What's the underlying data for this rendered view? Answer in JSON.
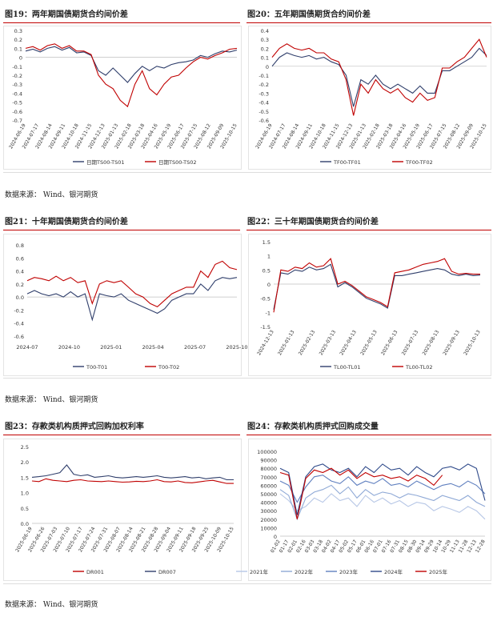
{
  "titles": {
    "fig19": "图19：两年期国债期货合约间价差",
    "fig20": "图20：五年期国债期货合约间价差",
    "fig21": "图21：十年期国债期货合约间价差",
    "fig22": "图22：三十年期国债期货合约间价差",
    "fig23": "图23：存款类机构质押式回购加权利率",
    "fig24": "图24：存款类机构质押式回购成交量"
  },
  "sources": {
    "row1": "数据来源：  Wind、银河期货",
    "row2": "数据来源：  Wind、银河期货",
    "row3": "数据来源：  Wind、银河期货"
  },
  "colors": {
    "navy": "#2f3e6b",
    "red": "#c00000",
    "y2021": "#b7c7e6",
    "y2022": "#8fa9d6",
    "y2023": "#5f7fbf",
    "y2024": "#2f4a8a",
    "y2025": "#c00000"
  },
  "chart_data": [
    {
      "id": "fig19",
      "type": "line",
      "ylim": [
        -0.7,
        0.3
      ],
      "yticks": [
        0.3,
        0.2,
        0.1,
        0,
        -0.1,
        -0.2,
        -0.3,
        -0.4,
        -0.5,
        -0.6,
        -0.7
      ],
      "ytick_labels": [
        "0.3",
        "0.2",
        "0.1",
        "0",
        "-0.1",
        "-0.2",
        "-0.3",
        "-0.4",
        "-0.5",
        "-0.6",
        "-0.7"
      ],
      "xtick_labels": [
        "2024-06-19",
        "2024-07-17",
        "2024-08-14",
        "2024-09-11",
        "2024-10-18",
        "2024-11-15",
        "2024-12-13",
        "2025-01-13",
        "2025-02-18",
        "2025-03-18",
        "2025-04-16",
        "2025-05-19",
        "2025-06-17",
        "2025-07-15",
        "2025-08-12",
        "2025-09-09",
        "2025-10-15"
      ],
      "series": [
        {
          "name": "日期TS00-TS01",
          "color": "#2f3e6b",
          "values": [
            0.07,
            0.09,
            0.06,
            0.1,
            0.12,
            0.08,
            0.11,
            0.05,
            0.06,
            0.02,
            -0.15,
            -0.2,
            -0.12,
            -0.2,
            -0.28,
            -0.18,
            -0.1,
            -0.15,
            -0.1,
            -0.12,
            -0.08,
            -0.06,
            -0.05,
            -0.03,
            0.02,
            0.0,
            0.04,
            0.07,
            0.06,
            0.08
          ]
        },
        {
          "name": "日期TS00-TS02",
          "color": "#c00000",
          "values": [
            0.1,
            0.12,
            0.08,
            0.13,
            0.15,
            0.1,
            0.13,
            0.07,
            0.07,
            0.03,
            -0.2,
            -0.3,
            -0.35,
            -0.48,
            -0.55,
            -0.3,
            -0.15,
            -0.35,
            -0.42,
            -0.3,
            -0.22,
            -0.2,
            -0.12,
            -0.05,
            0.0,
            -0.02,
            0.02,
            0.05,
            0.09,
            0.1
          ]
        }
      ]
    },
    {
      "id": "fig20",
      "type": "line",
      "ylim": [
        -0.6,
        0.4
      ],
      "yticks": [
        0.4,
        0.3,
        0.2,
        0.1,
        0,
        -0.1,
        -0.2,
        -0.3,
        -0.4,
        -0.5,
        -0.6
      ],
      "ytick_labels": [
        "0.4",
        "0.3",
        "0.2",
        "0.1",
        "0",
        "-0.1",
        "-0.2",
        "-0.3",
        "-0.4",
        "-0.5",
        "-0.6"
      ],
      "xtick_labels": [
        "2024-06-19",
        "2024-07-17",
        "2024-08-14",
        "2024-09-11",
        "2024-10-18",
        "2024-11-15",
        "2024-12-13",
        "2025-01-13",
        "2025-02-18",
        "2025-03-18",
        "2025-04-16",
        "2025-05-19",
        "2025-06-17",
        "2025-07-15",
        "2025-08-12",
        "2025-09-09",
        "2025-10-15"
      ],
      "series": [
        {
          "name": "TF00-TF01",
          "color": "#2f3e6b",
          "values": [
            0.0,
            0.1,
            0.15,
            0.12,
            0.1,
            0.12,
            0.08,
            0.1,
            0.05,
            0.02,
            -0.1,
            -0.45,
            -0.15,
            -0.2,
            -0.1,
            -0.2,
            -0.25,
            -0.2,
            -0.25,
            -0.3,
            -0.22,
            -0.3,
            -0.3,
            -0.05,
            -0.05,
            0.0,
            0.05,
            0.1,
            0.2,
            0.12
          ]
        },
        {
          "name": "TF00-TF02",
          "color": "#c00000",
          "values": [
            0.1,
            0.2,
            0.25,
            0.2,
            0.18,
            0.2,
            0.15,
            0.15,
            0.08,
            0.05,
            -0.15,
            -0.55,
            -0.2,
            -0.3,
            -0.15,
            -0.25,
            -0.3,
            -0.25,
            -0.35,
            -0.4,
            -0.3,
            -0.38,
            -0.35,
            -0.02,
            -0.02,
            0.05,
            0.1,
            0.2,
            0.3,
            0.1
          ]
        }
      ]
    },
    {
      "id": "fig21",
      "type": "line",
      "ylim": [
        -0.6,
        0.8
      ],
      "yticks": [
        0.8,
        0.6,
        0.4,
        0.2,
        0,
        -0.2,
        -0.4,
        -0.6
      ],
      "ytick_labels": [
        "0.8",
        "0.6",
        "0.4",
        "0.2",
        "0.0",
        "-0.2",
        "-0.4",
        "-0.6"
      ],
      "xtick_labels": [
        "2024-07",
        "2024-10",
        "2025-01",
        "2025-04",
        "2025-07",
        "2025-10"
      ],
      "series": [
        {
          "name": "T00-T01",
          "color": "#2f3e6b",
          "values": [
            0.05,
            0.1,
            0.05,
            0.02,
            0.05,
            0.0,
            0.08,
            0.0,
            0.05,
            -0.35,
            0.05,
            0.02,
            0.0,
            0.05,
            -0.05,
            -0.1,
            -0.15,
            -0.2,
            -0.25,
            -0.18,
            -0.05,
            0.0,
            0.05,
            0.05,
            0.2,
            0.1,
            0.25,
            0.3,
            0.28,
            0.3
          ]
        },
        {
          "name": "T00-T02",
          "color": "#c00000",
          "values": [
            0.25,
            0.3,
            0.28,
            0.25,
            0.32,
            0.25,
            0.3,
            0.22,
            0.25,
            -0.1,
            0.2,
            0.25,
            0.22,
            0.25,
            0.15,
            0.05,
            0.0,
            -0.1,
            -0.15,
            -0.05,
            0.05,
            0.1,
            0.15,
            0.15,
            0.4,
            0.3,
            0.5,
            0.55,
            0.45,
            0.42
          ]
        }
      ]
    },
    {
      "id": "fig22",
      "type": "line",
      "ylim": [
        -1.5,
        1.5
      ],
      "yticks": [
        1.5,
        1,
        0.5,
        0,
        -0.5,
        -1,
        -1.5
      ],
      "ytick_labels": [
        "1.5",
        "1",
        "0.5",
        "0",
        "-0.5",
        "-1",
        "-1.5"
      ],
      "xtick_labels": [
        "2024-12-13",
        "2025-01-13",
        "2025-02-13",
        "2025-03-13",
        "2025-04-13",
        "2025-05-13",
        "2025-06-13",
        "2025-07-13",
        "2025-08-13",
        "2025-09-13",
        "2025-10-13"
      ],
      "series": [
        {
          "name": "TL00-TL01",
          "color": "#2f3e6b",
          "values": [
            -0.9,
            0.4,
            0.35,
            0.5,
            0.45,
            0.6,
            0.5,
            0.55,
            0.7,
            -0.1,
            0.05,
            -0.1,
            -0.3,
            -0.5,
            -0.6,
            -0.7,
            -0.85,
            0.3,
            0.3,
            0.35,
            0.4,
            0.45,
            0.5,
            0.55,
            0.5,
            0.35,
            0.3,
            0.35,
            0.3,
            0.32
          ]
        },
        {
          "name": "TL00-TL02",
          "color": "#c00000",
          "values": [
            -1.0,
            0.5,
            0.45,
            0.6,
            0.55,
            0.75,
            0.6,
            0.65,
            0.9,
            0.0,
            0.1,
            -0.05,
            -0.25,
            -0.45,
            -0.55,
            -0.65,
            -0.8,
            0.4,
            0.45,
            0.5,
            0.6,
            0.7,
            0.75,
            0.8,
            0.9,
            0.45,
            0.35,
            0.38,
            0.35,
            0.35
          ]
        }
      ]
    },
    {
      "id": "fig23",
      "type": "line",
      "ylim": [
        0,
        2.5
      ],
      "yticks": [
        2.5,
        2,
        1.5,
        1,
        0.5,
        0
      ],
      "ytick_labels": [
        "2.5",
        "2.0",
        "1.5",
        "1.0",
        "0.5",
        "0.0"
      ],
      "xtick_labels": [
        "2025-06-19",
        "2025-06-26",
        "2025-07-03",
        "2025-07-10",
        "2025-07-17",
        "2025-07-24",
        "2025-07-31",
        "2025-08-07",
        "2025-08-14",
        "2025-08-21",
        "2025-08-28",
        "2025-09-04",
        "2025-09-11",
        "2025-09-18",
        "2025-09-25",
        "2025-10-09",
        "2025-10-15"
      ],
      "series": [
        {
          "name": "DR001",
          "color": "#c00000",
          "values": [
            1.38,
            1.36,
            1.45,
            1.4,
            1.38,
            1.36,
            1.4,
            1.42,
            1.38,
            1.37,
            1.36,
            1.38,
            1.36,
            1.34,
            1.35,
            1.37,
            1.36,
            1.38,
            1.42,
            1.36,
            1.35,
            1.38,
            1.33,
            1.32,
            1.35,
            1.38,
            1.4,
            1.35,
            1.3,
            1.3
          ]
        },
        {
          "name": "DR007",
          "color": "#2f3e6b",
          "values": [
            1.5,
            1.52,
            1.55,
            1.6,
            1.65,
            1.9,
            1.6,
            1.55,
            1.58,
            1.5,
            1.52,
            1.55,
            1.5,
            1.48,
            1.5,
            1.52,
            1.5,
            1.52,
            1.55,
            1.5,
            1.48,
            1.5,
            1.52,
            1.48,
            1.5,
            1.45,
            1.48,
            1.5,
            1.42,
            1.42
          ]
        }
      ]
    },
    {
      "id": "fig24",
      "type": "line",
      "ylim": [
        0,
        100000
      ],
      "yticks": [
        100000,
        90000,
        80000,
        70000,
        60000,
        50000,
        40000,
        30000,
        20000,
        10000,
        0
      ],
      "ytick_labels": [
        "100000",
        "90000",
        "80000",
        "70000",
        "60000",
        "50000",
        "40000",
        "30000",
        "20000",
        "10000",
        "0"
      ],
      "xtick_labels": [
        "01-02",
        "01-17",
        "02-01",
        "02-16",
        "03-03",
        "03-18",
        "04-02",
        "04-17",
        "05-02",
        "05-17",
        "06-01",
        "06-16",
        "07-01",
        "07-16",
        "07-31",
        "08-15",
        "08-30",
        "09-14",
        "09-29",
        "10-14",
        "10-29",
        "11-13",
        "11-28",
        "12-13",
        "12-28"
      ],
      "series": [
        {
          "name": "2021年",
          "color": "#b7c7e6",
          "values": [
            50000,
            42000,
            30000,
            35000,
            45000,
            40000,
            50000,
            42000,
            45000,
            35000,
            48000,
            40000,
            45000,
            38000,
            42000,
            35000,
            40000,
            38000,
            30000,
            35000,
            32000,
            28000,
            35000,
            30000,
            20000
          ]
        },
        {
          "name": "2022年",
          "color": "#8fa9d6",
          "values": [
            55000,
            48000,
            20000,
            45000,
            52000,
            55000,
            60000,
            50000,
            58000,
            45000,
            55000,
            48000,
            52000,
            50000,
            45000,
            50000,
            48000,
            45000,
            42000,
            48000,
            45000,
            42000,
            48000,
            40000,
            35000
          ]
        },
        {
          "name": "2023年",
          "color": "#5f7fbf",
          "values": [
            65000,
            60000,
            40000,
            58000,
            70000,
            72000,
            65000,
            62000,
            70000,
            60000,
            65000,
            62000,
            68000,
            60000,
            62000,
            58000,
            65000,
            60000,
            55000,
            60000,
            62000,
            58000,
            65000,
            60000,
            50000
          ]
        },
        {
          "name": "2024年",
          "color": "#2f4a8a",
          "values": [
            80000,
            75000,
            25000,
            70000,
            82000,
            85000,
            78000,
            75000,
            80000,
            70000,
            82000,
            75000,
            85000,
            78000,
            80000,
            72000,
            82000,
            75000,
            70000,
            80000,
            82000,
            78000,
            85000,
            80000,
            42000
          ]
        },
        {
          "name": "2025年",
          "color": "#c00000",
          "values": [
            75000,
            72000,
            20000,
            68000,
            78000,
            75000,
            80000,
            72000,
            78000,
            68000,
            75000,
            70000,
            72000,
            68000,
            70000,
            65000,
            72000,
            68000,
            60000,
            72000
          ]
        }
      ]
    }
  ]
}
